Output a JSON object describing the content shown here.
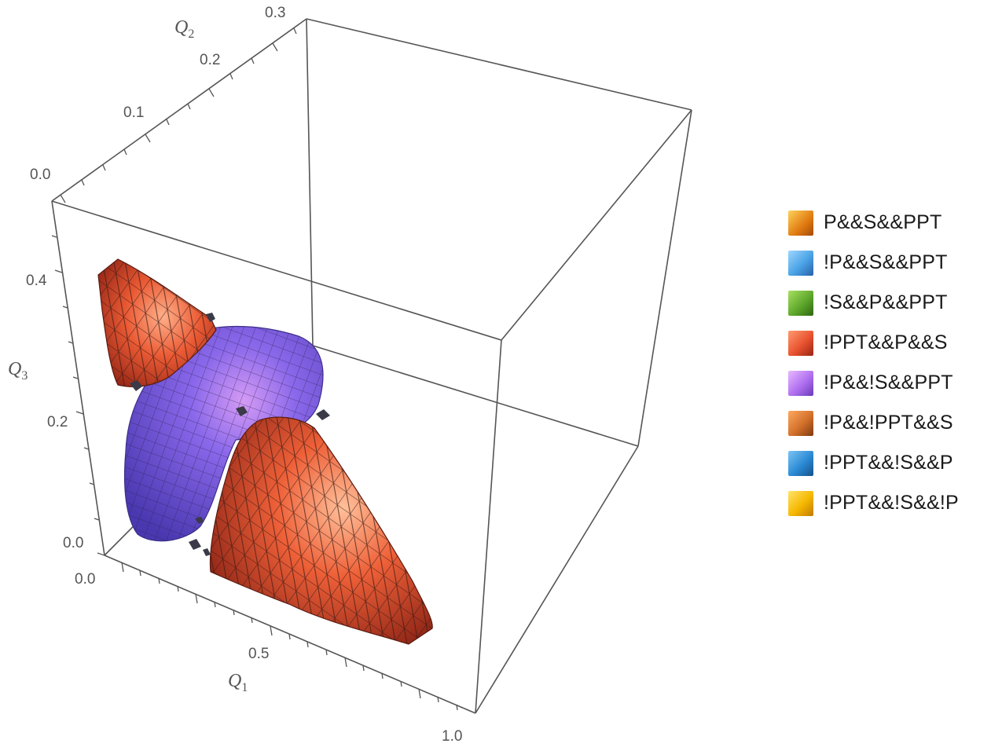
{
  "axes": {
    "q1": {
      "name": "Q",
      "sub": "1",
      "ticks": [
        "0.0",
        "0.5",
        "1.0"
      ]
    },
    "q2": {
      "name": "Q",
      "sub": "2",
      "ticks": [
        "0.0",
        "0.1",
        "0.2",
        "0.3"
      ]
    },
    "q3": {
      "name": "Q",
      "sub": "3",
      "ticks": [
        "0.0",
        "0.2",
        "0.4"
      ]
    }
  },
  "legend": {
    "items": [
      {
        "label": "P&&S&&PPT",
        "color": "#f0a020"
      },
      {
        "label": "!P&&S&&PPT",
        "color": "#4aa3e6"
      },
      {
        "label": "!S&&P&&PPT",
        "color": "#5fa82c"
      },
      {
        "label": "!PPT&&P&&S",
        "color": "#e8532f"
      },
      {
        "label": "!P&&!S&&PPT",
        "color": "#b070f0"
      },
      {
        "label": "!P&&!PPT&&S",
        "color": "#d2702a"
      },
      {
        "label": "!PPT&&!S&&P",
        "color": "#2b8ad4"
      },
      {
        "label": "!PPT&&!S&&!P",
        "color": "#f5b800"
      }
    ]
  },
  "surface_colors": {
    "red_region": "#e8532f",
    "purple_region": "#6a55d8",
    "purple_highlight": "#c98ef0"
  }
}
